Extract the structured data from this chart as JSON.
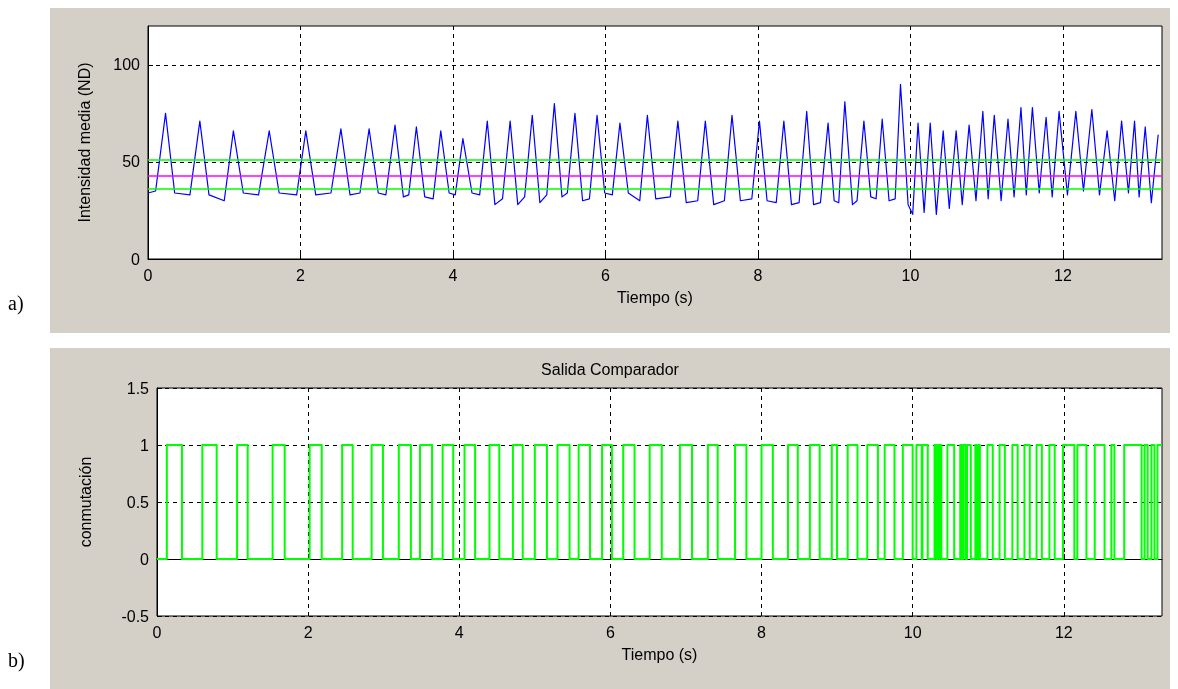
{
  "chart_data": [
    {
      "type": "line",
      "xlabel": "Tiempo (s)",
      "ylabel": "Intensidad media (ND)",
      "annotations": [
        "a)"
      ],
      "xlim": [
        0,
        13.3
      ],
      "xticks": [
        0,
        2,
        4,
        6,
        8,
        10,
        12
      ],
      "ylim": [
        0,
        120
      ],
      "yticks": [
        0,
        50,
        100
      ],
      "grid": true,
      "marker": "none",
      "line_style": "solid",
      "ref_lines": [
        {
          "axis": "y",
          "value": 51,
          "color": "#00ff00"
        },
        {
          "axis": "y",
          "value": 43,
          "color": "#ff00ff"
        },
        {
          "axis": "y",
          "value": 36,
          "color": "#00ff00"
        }
      ],
      "series": [
        {
          "color": "#0000ff",
          "x": [
            0,
            0.1,
            0.23,
            0.35,
            0.55,
            0.68,
            0.8,
            1.0,
            1.12,
            1.25,
            1.45,
            1.59,
            1.72,
            1.95,
            2.07,
            2.2,
            2.4,
            2.53,
            2.65,
            2.78,
            2.9,
            3.02,
            3.12,
            3.24,
            3.35,
            3.42,
            3.52,
            3.63,
            3.74,
            3.84,
            3.95,
            4.03,
            4.13,
            4.25,
            4.35,
            4.45,
            4.55,
            4.65,
            4.75,
            4.85,
            4.94,
            5.04,
            5.14,
            5.23,
            5.33,
            5.43,
            5.5,
            5.6,
            5.7,
            5.79,
            5.89,
            5.99,
            6.09,
            6.19,
            6.3,
            6.45,
            6.55,
            6.66,
            6.85,
            6.95,
            7.06,
            7.21,
            7.31,
            7.42,
            7.56,
            7.66,
            7.77,
            7.92,
            8.02,
            8.12,
            8.24,
            8.34,
            8.44,
            8.54,
            8.64,
            8.73,
            8.82,
            8.92,
            9.0,
            9.06,
            9.14,
            9.24,
            9.3,
            9.39,
            9.48,
            9.55,
            9.63,
            9.72,
            9.8,
            9.87,
            9.97,
            10.03,
            10.1,
            10.18,
            10.26,
            10.34,
            10.43,
            10.51,
            10.6,
            10.68,
            10.77,
            10.86,
            10.95,
            11.02,
            11.1,
            11.19,
            11.28,
            11.36,
            11.45,
            11.52,
            11.6,
            11.69,
            11.78,
            11.86,
            11.95,
            12.06,
            12.17,
            12.27,
            12.38,
            12.48,
            12.58,
            12.68,
            12.77,
            12.86,
            12.94,
            13.0,
            13.08,
            13.16,
            13.25
          ],
          "values": [
            34,
            35,
            75,
            34,
            33,
            71,
            33,
            30,
            66,
            34,
            33,
            66,
            34,
            33,
            66,
            33,
            34,
            67,
            33,
            34,
            67,
            34,
            33,
            69,
            32,
            33,
            68,
            32,
            31,
            66,
            34,
            33,
            62,
            34,
            33,
            71,
            28,
            31,
            71,
            28,
            32,
            74,
            29,
            33,
            80,
            32,
            34,
            75,
            30,
            31,
            74,
            34,
            33,
            70,
            34,
            30,
            74,
            31,
            32,
            71,
            29,
            30,
            71,
            28,
            30,
            74,
            30,
            31,
            71,
            30,
            29,
            71,
            28,
            29,
            76,
            28,
            29,
            70,
            30,
            29,
            81,
            28,
            30,
            71,
            32,
            31,
            72,
            30,
            31,
            90,
            28,
            23,
            70,
            24,
            70,
            23,
            66,
            26,
            66,
            28,
            69,
            30,
            76,
            31,
            74,
            30,
            72,
            32,
            78,
            33,
            78,
            34,
            73,
            32,
            76,
            33,
            76,
            35,
            77,
            33,
            66,
            30,
            71,
            34,
            71,
            32,
            68,
            29,
            64
          ]
        }
      ]
    },
    {
      "type": "step",
      "title": "Salida Comparador",
      "xlabel": "Tiempo (s)",
      "ylabel": "conmutación",
      "annotations": [
        "b)"
      ],
      "xlim": [
        0,
        13.3
      ],
      "xticks": [
        0,
        2,
        4,
        6,
        8,
        10,
        12
      ],
      "ylim": [
        -0.5,
        1.5
      ],
      "yticks": [
        -0.5,
        0,
        0.5,
        1,
        1.5
      ],
      "grid": true,
      "marker": "none",
      "line_style": "solid",
      "series": [
        {
          "color": "#00ff00",
          "x": [
            0,
            0.13,
            0.33,
            0.6,
            0.79,
            1.06,
            1.2,
            1.53,
            1.69,
            2.02,
            2.18,
            2.45,
            2.59,
            2.84,
            2.99,
            3.2,
            3.36,
            3.48,
            3.64,
            3.78,
            3.92,
            4.07,
            4.21,
            4.4,
            4.53,
            4.71,
            4.84,
            5.0,
            5.16,
            5.3,
            5.46,
            5.58,
            5.73,
            5.89,
            6.02,
            6.17,
            6.32,
            6.52,
            6.68,
            6.92,
            7.08,
            7.29,
            7.42,
            7.65,
            7.8,
            8.0,
            8.15,
            8.35,
            8.48,
            8.64,
            8.77,
            8.93,
            9.0,
            9.14,
            9.27,
            9.4,
            9.54,
            9.63,
            9.76,
            9.87,
            10.0,
            10.05,
            10.12,
            10.13,
            10.2,
            10.29,
            10.31,
            10.33,
            10.35,
            10.36,
            10.38,
            10.46,
            10.55,
            10.63,
            10.65,
            10.67,
            10.7,
            10.72,
            10.77,
            10.83,
            10.85,
            10.87,
            10.89,
            10.99,
            11.06,
            11.15,
            11.22,
            11.32,
            11.39,
            11.48,
            11.55,
            11.64,
            11.71,
            11.81,
            11.88,
            11.99,
            12.14,
            12.18,
            12.3,
            12.41,
            12.54,
            12.63,
            12.67,
            12.8,
            13.03,
            13.07,
            13.11,
            13.16,
            13.2,
            13.24,
            13.3
          ],
          "values": [
            0,
            1,
            0,
            1,
            0,
            1,
            0,
            1,
            0,
            1,
            0,
            1,
            0,
            1,
            0,
            1,
            0,
            1,
            0,
            1,
            0,
            1,
            0,
            1,
            0,
            1,
            0,
            1,
            0,
            1,
            0,
            1,
            0,
            1,
            0,
            1,
            0,
            1,
            0,
            1,
            0,
            1,
            0,
            1,
            0,
            1,
            0,
            1,
            0,
            1,
            0,
            1,
            0,
            1,
            0,
            1,
            0,
            1,
            0,
            1,
            0,
            1,
            0,
            1,
            0,
            1,
            0,
            1,
            0,
            1,
            0,
            1,
            0,
            1,
            0,
            1,
            0,
            1,
            0,
            1,
            0,
            1,
            0,
            1,
            0,
            1,
            0,
            1,
            0,
            1,
            0,
            1,
            0,
            1,
            0,
            1,
            0,
            1,
            0,
            1,
            0,
            1,
            0,
            1,
            0,
            1,
            0,
            1,
            0,
            1,
            1
          ]
        }
      ]
    }
  ]
}
